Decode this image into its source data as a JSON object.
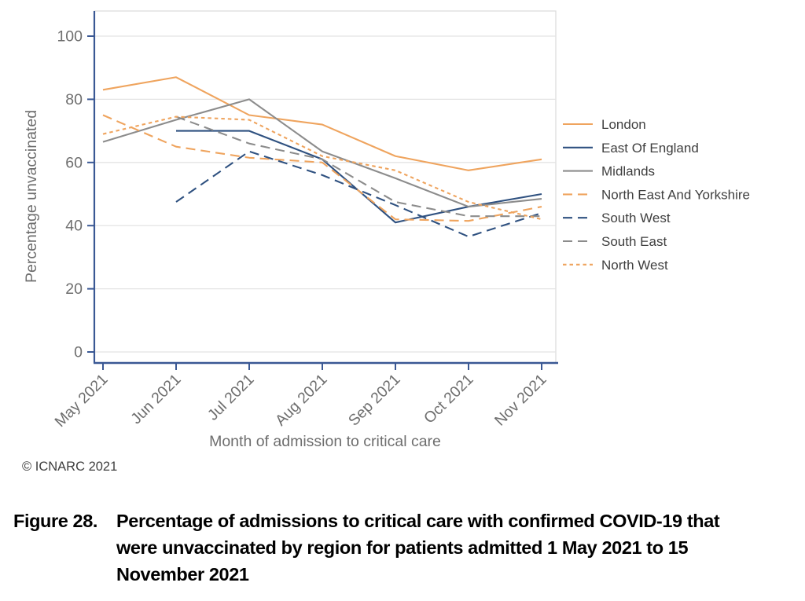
{
  "figure": {
    "caption_label": "Figure 28.",
    "caption_lines": [
      "Percentage of admissions to critical care with confirmed COVID-19 that",
      "were unvaccinated by region for patients admitted 1 May 2021 to 15",
      "November 2021"
    ],
    "copyright": "© ICNARC 2021"
  },
  "style": {
    "axis_color": "#3A5894",
    "grid_color": "#E4E4E4",
    "plot_border_color": "#DADADA",
    "tick_label_color": "#6E6E6E",
    "axis_title_color": "#6E6E6E",
    "legend_text_color": "#3F3F3F",
    "copyright_color": "#3E3E3E",
    "orange": "#EFA45E",
    "blue": "#2F5180",
    "gray": "#8C8C8C"
  },
  "chart_data": {
    "type": "line",
    "title": "",
    "xlabel": "Month of admission to critical care",
    "ylabel": "Percentage unvaccinated",
    "x": [
      "May 2021",
      "Jun 2021",
      "Jul 2021",
      "Aug 2021",
      "Sep 2021",
      "Oct 2021",
      "Nov 2021"
    ],
    "ylim": [
      0,
      100
    ],
    "yticks": [
      0,
      20,
      40,
      60,
      80,
      100
    ],
    "grid": true,
    "legend_position": "right",
    "series": [
      {
        "name": "London",
        "color": "#EFA45E",
        "dash": "solid",
        "values": [
          83,
          87,
          75,
          72,
          62,
          57.5,
          61
        ]
      },
      {
        "name": "East Of England",
        "color": "#2F5180",
        "dash": "solid",
        "values": [
          null,
          70,
          70,
          61,
          41,
          46,
          50
        ]
      },
      {
        "name": "Midlands",
        "color": "#8C8C8C",
        "dash": "solid",
        "values": [
          66.5,
          73.5,
          80,
          63.5,
          55,
          46,
          48.5
        ]
      },
      {
        "name": "North East And Yorkshire",
        "color": "#EFA45E",
        "dash": "long",
        "values": [
          75,
          65,
          61.5,
          60,
          42,
          41.5,
          46
        ]
      },
      {
        "name": "South West",
        "color": "#2F5180",
        "dash": "long",
        "values": [
          null,
          47.5,
          63.5,
          56,
          46.5,
          36.5,
          44
        ]
      },
      {
        "name": "South East",
        "color": "#8C8C8C",
        "dash": "long",
        "values": [
          null,
          74.5,
          66,
          61,
          47.5,
          43,
          43
        ]
      },
      {
        "name": "North West",
        "color": "#EFA45E",
        "dash": "short",
        "values": [
          69,
          74.5,
          73.5,
          62,
          57.5,
          47.5,
          42
        ]
      }
    ]
  }
}
